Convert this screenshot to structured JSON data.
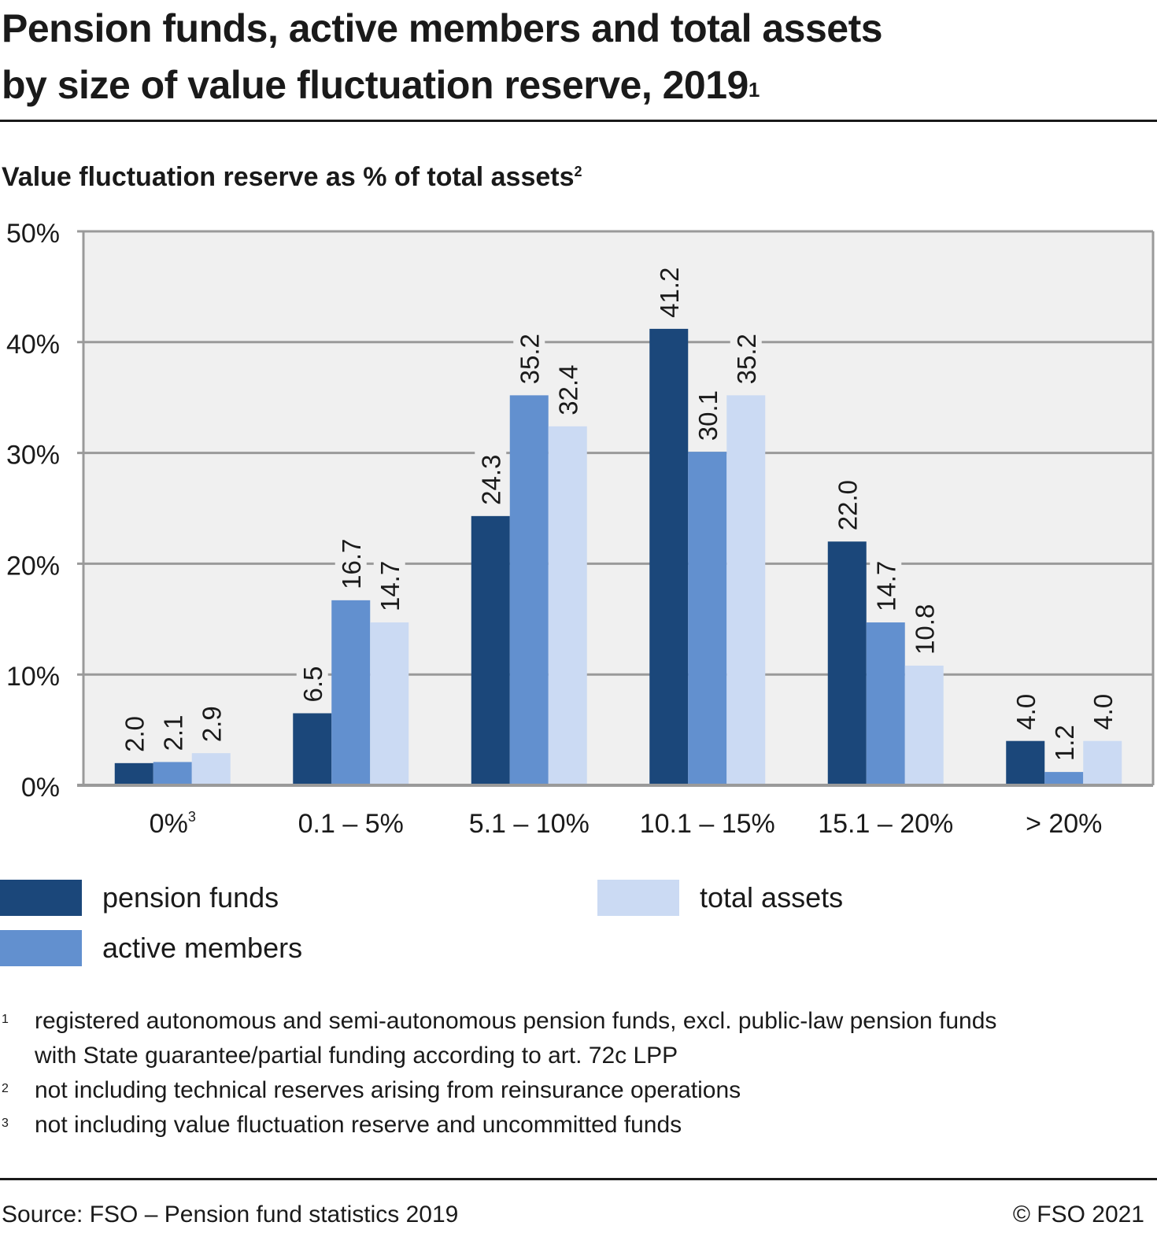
{
  "title": {
    "line1": "Pension funds, active members and total assets",
    "line2": "by size of value fluctuation reserve, 2019",
    "footnote_ref": "1"
  },
  "subtitle": {
    "text": "Value fluctuation reserve as % of total assets",
    "footnote_ref": "2"
  },
  "chart_data": {
    "type": "bar",
    "title": "Pension funds, active members and total assets by size of value fluctuation reserve, 2019",
    "ylabel": "Value fluctuation reserve as % of total assets",
    "xlabel": "",
    "ylim": [
      0,
      50
    ],
    "yticks": [
      0,
      10,
      20,
      30,
      40,
      50
    ],
    "ytick_labels": [
      "0%",
      "10%",
      "20%",
      "30%",
      "40%",
      "50%"
    ],
    "grid": true,
    "categories": [
      "0%",
      "0.1 – 5%",
      "5.1 – 10%",
      "10.1 – 15%",
      "15.1 – 20%",
      "> 20%"
    ],
    "category_footnotes": [
      "3",
      "",
      "",
      "",
      "",
      ""
    ],
    "series": [
      {
        "name": "pension funds",
        "color": "#1b477a",
        "values": [
          2.0,
          6.5,
          24.3,
          41.2,
          22.0,
          4.0
        ]
      },
      {
        "name": "active members",
        "color": "#6290cf",
        "values": [
          2.1,
          16.7,
          35.2,
          30.1,
          14.7,
          1.2
        ]
      },
      {
        "name": "total assets",
        "color": "#cbdaf3",
        "values": [
          2.9,
          14.7,
          32.4,
          35.2,
          10.8,
          4.0
        ]
      }
    ],
    "data_labels": [
      [
        "2.0",
        "6.5",
        "24.3",
        "41.2",
        "22.0",
        "4.0"
      ],
      [
        "2.1",
        "16.7",
        "35.2",
        "30.1",
        "14.7",
        "1.2"
      ],
      [
        "2.9",
        "14.7",
        "32.4",
        "35.2",
        "10.8",
        "4.0"
      ]
    ],
    "legend_position": "bottom"
  },
  "legend": [
    {
      "label": "pension funds",
      "color": "#1b477a"
    },
    {
      "label": "active members",
      "color": "#6290cf"
    },
    {
      "label": "total assets",
      "color": "#cbdaf3"
    }
  ],
  "notes": [
    {
      "num": "1",
      "text": "registered autonomous and semi-autonomous pension funds, excl. public-law pension funds",
      "text2": "with State guarantee/partial funding according to art. 72c LPP"
    },
    {
      "num": "2",
      "text": "not including technical reserves arising from reinsurance operations"
    },
    {
      "num": "3",
      "text": "not including value fluctuation reserve and uncommitted funds"
    }
  ],
  "footer": {
    "source": "Source: FSO – Pension fund statistics 2019",
    "copyright": "© FSO 2021"
  }
}
